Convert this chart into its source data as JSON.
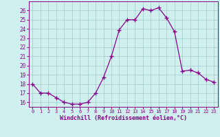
{
  "x": [
    0,
    1,
    2,
    3,
    4,
    5,
    6,
    7,
    8,
    9,
    10,
    11,
    12,
    13,
    14,
    15,
    16,
    17,
    18,
    19,
    20,
    21,
    22,
    23
  ],
  "y": [
    18,
    17,
    17,
    16.5,
    16,
    15.8,
    15.8,
    16,
    17,
    18.7,
    21,
    23.9,
    25,
    25,
    26.2,
    26,
    26.3,
    25.2,
    23.7,
    19.4,
    19.5,
    19.2,
    18.5,
    18.2
  ],
  "line_color": "#880088",
  "marker": "+",
  "marker_size": 4,
  "bg_color": "#d0f0f0",
  "grid_color": "#a0c8c8",
  "xlabel": "Windchill (Refroidissement éolien,°C)",
  "ylim": [
    15.5,
    27
  ],
  "xlim": [
    -0.5,
    23.5
  ],
  "yticks": [
    16,
    17,
    18,
    19,
    20,
    21,
    22,
    23,
    24,
    25,
    26
  ],
  "xticks": [
    0,
    1,
    2,
    3,
    4,
    5,
    6,
    7,
    8,
    9,
    10,
    11,
    12,
    13,
    14,
    15,
    16,
    17,
    18,
    19,
    20,
    21,
    22,
    23
  ]
}
